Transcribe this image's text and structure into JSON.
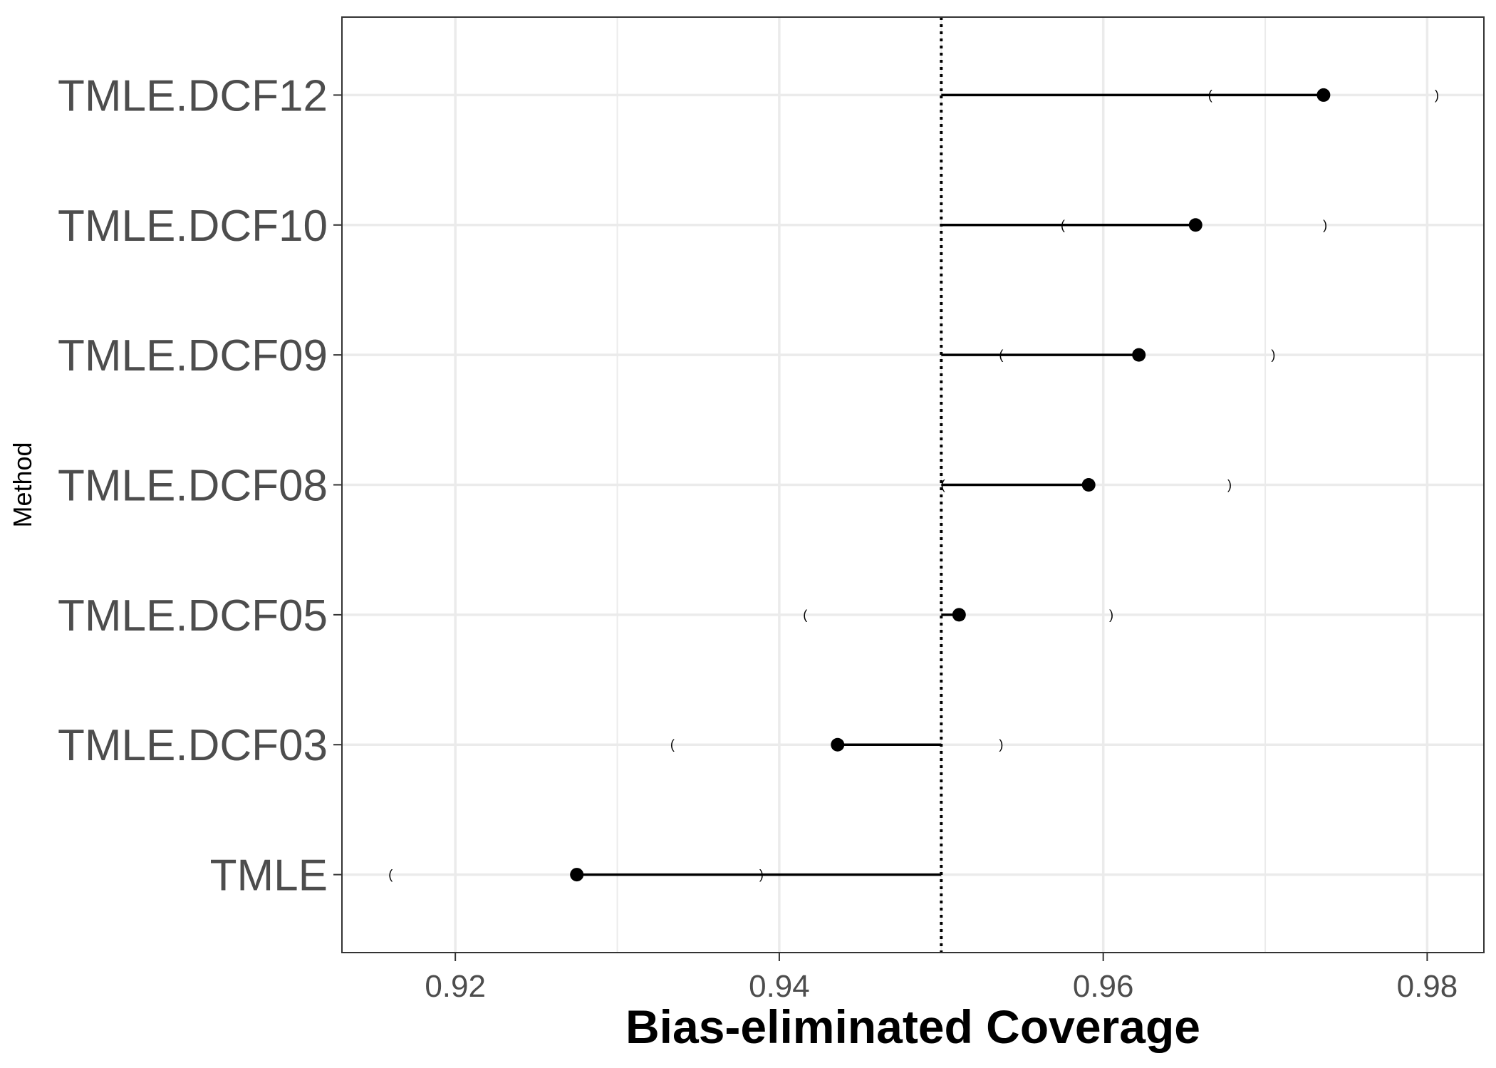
{
  "chart_data": {
    "type": "scatter",
    "xlabel": "Bias-eliminated Coverage",
    "ylabel": "Method",
    "xlim": [
      0.913,
      0.9835
    ],
    "x_ticks": [
      "0.92",
      "0.94",
      "0.96",
      "0.98"
    ],
    "x_tick_values": [
      0.92,
      0.94,
      0.96,
      0.98
    ],
    "x_minor_tick_values": [
      0.93,
      0.95,
      0.97
    ],
    "reference_line": 0.95,
    "reference_line_style": "dotted",
    "grid": true,
    "categories": [
      "TMLE.DCF12",
      "TMLE.DCF10",
      "TMLE.DCF09",
      "TMLE.DCF08",
      "TMLE.DCF05",
      "TMLE.DCF03",
      "TMLE"
    ],
    "series": [
      {
        "values": [
          0.9736,
          0.9657,
          0.9622,
          0.9591,
          0.9511,
          0.9436,
          0.9275
        ],
        "ci_lower": [
          0.9666,
          0.9575,
          0.9537,
          0.9501,
          0.9416,
          0.9334,
          0.916
        ],
        "ci_upper": [
          0.9806,
          0.9737,
          0.9705,
          0.9678,
          0.9605,
          0.9537,
          0.9389
        ]
      }
    ],
    "ci_left_marker": "(",
    "ci_right_marker": ")",
    "colors": {
      "points": "#000000",
      "grid": "#ebebeb",
      "panel_border": "#333333",
      "tick_text": "#4d4d4d"
    }
  }
}
